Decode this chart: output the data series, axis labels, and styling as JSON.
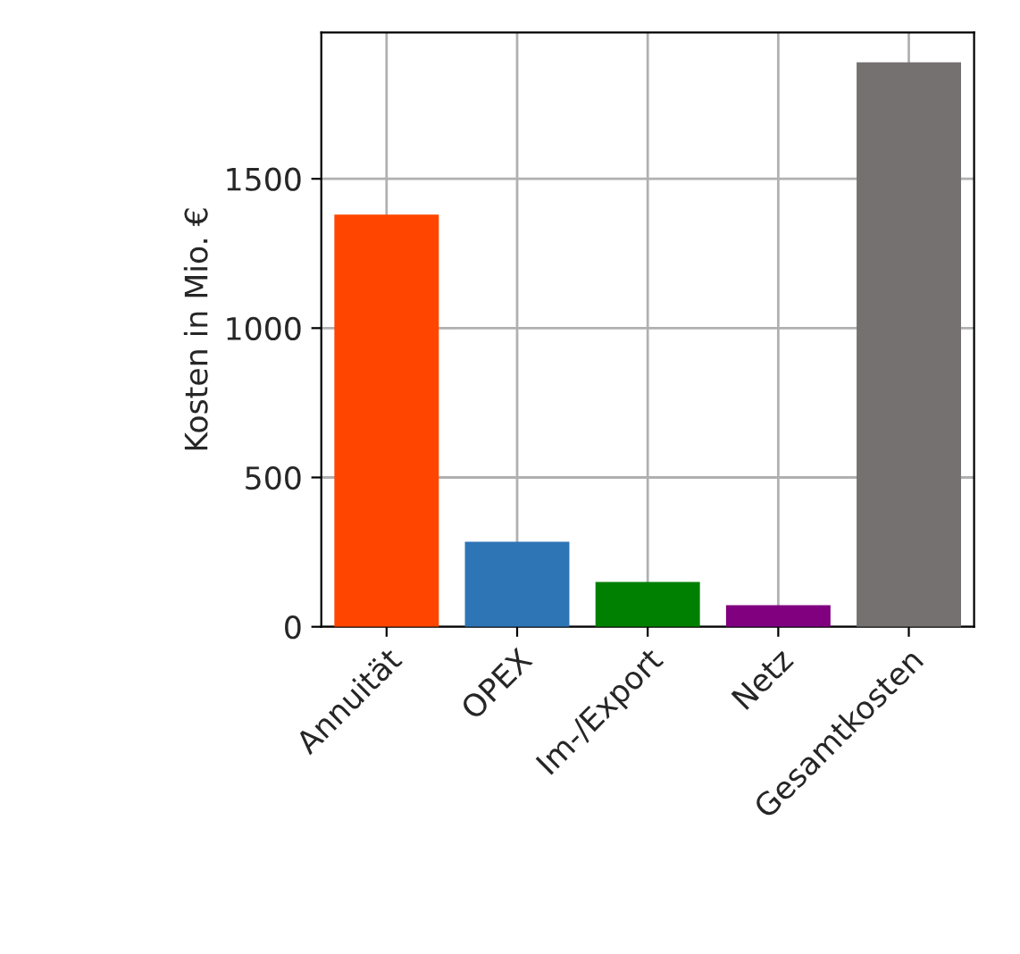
{
  "chart_data": {
    "type": "bar",
    "ylabel": "Kosten in Mio. €",
    "categories": [
      "Annuität",
      "OPEX",
      "Im-/Export",
      "Netz",
      "Gesamtkosten"
    ],
    "values": [
      1380,
      285,
      150,
      72,
      1890
    ],
    "colors": [
      "#ff4500",
      "#2e75b6",
      "#008000",
      "#800080",
      "#767171"
    ],
    "ylim": [
      0,
      1990
    ],
    "yticks": [
      0,
      500,
      1000,
      1500
    ],
    "grid": true,
    "legend": false
  }
}
